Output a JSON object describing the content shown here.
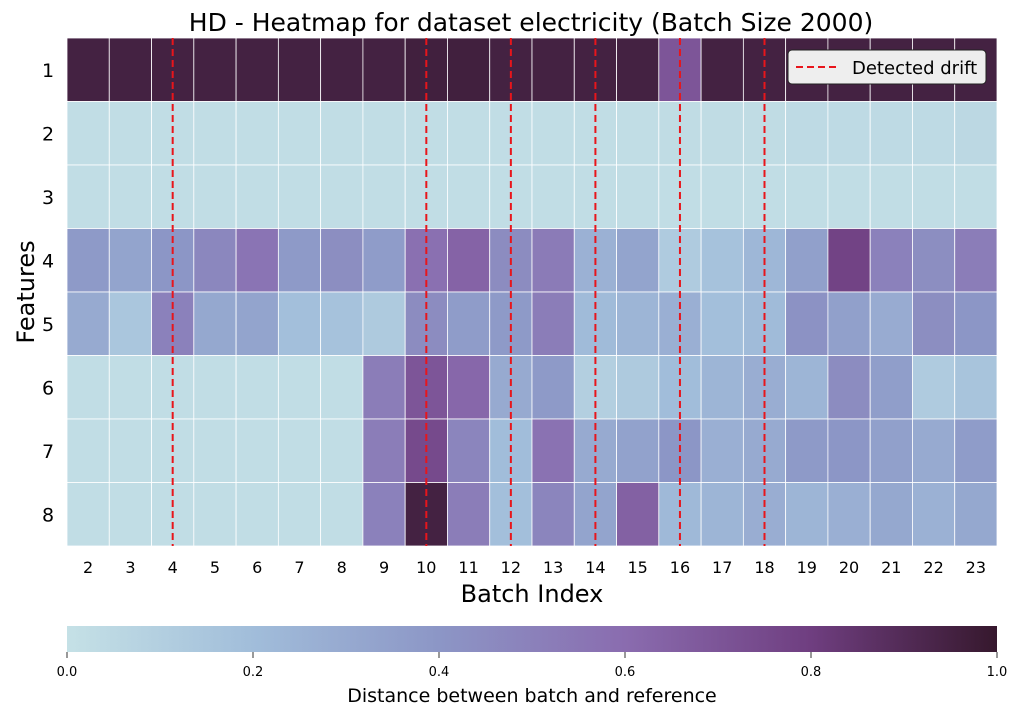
{
  "chart_data": {
    "type": "heatmap",
    "title": "HD - Heatmap for dataset electricity (Batch Size 2000)",
    "xlabel": "Batch Index",
    "ylabel": "Features",
    "x_categories": [
      "2",
      "3",
      "4",
      "5",
      "6",
      "7",
      "8",
      "9",
      "10",
      "11",
      "12",
      "13",
      "14",
      "15",
      "16",
      "17",
      "18",
      "19",
      "20",
      "21",
      "22",
      "23"
    ],
    "y_categories": [
      "1",
      "2",
      "3",
      "4",
      "5",
      "6",
      "7",
      "8"
    ],
    "values": [
      [
        0.95,
        0.95,
        0.95,
        0.95,
        0.95,
        0.95,
        0.95,
        0.95,
        0.96,
        0.96,
        0.95,
        0.95,
        0.95,
        0.95,
        0.7,
        0.95,
        0.95,
        0.95,
        0.95,
        0.95,
        0.95,
        0.95
      ],
      [
        0.02,
        0.02,
        0.02,
        0.02,
        0.02,
        0.02,
        0.02,
        0.02,
        0.02,
        0.02,
        0.02,
        0.02,
        0.02,
        0.02,
        0.03,
        0.03,
        0.03,
        0.04,
        0.04,
        0.04,
        0.04,
        0.05
      ],
      [
        0.02,
        0.02,
        0.02,
        0.02,
        0.02,
        0.02,
        0.02,
        0.02,
        0.02,
        0.02,
        0.02,
        0.02,
        0.02,
        0.02,
        0.02,
        0.02,
        0.02,
        0.02,
        0.02,
        0.02,
        0.02,
        0.02
      ],
      [
        0.38,
        0.33,
        0.4,
        0.47,
        0.56,
        0.38,
        0.44,
        0.37,
        0.58,
        0.64,
        0.45,
        0.53,
        0.26,
        0.33,
        0.12,
        0.17,
        0.23,
        0.35,
        0.78,
        0.5,
        0.44,
        0.52
      ],
      [
        0.3,
        0.15,
        0.5,
        0.31,
        0.33,
        0.19,
        0.17,
        0.13,
        0.45,
        0.37,
        0.38,
        0.52,
        0.21,
        0.24,
        0.27,
        0.19,
        0.21,
        0.42,
        0.35,
        0.29,
        0.44,
        0.4
      ],
      [
        0.02,
        0.02,
        0.02,
        0.02,
        0.02,
        0.02,
        0.02,
        0.52,
        0.7,
        0.62,
        0.3,
        0.38,
        0.1,
        0.13,
        0.2,
        0.24,
        0.28,
        0.24,
        0.45,
        0.36,
        0.12,
        0.16
      ],
      [
        0.02,
        0.02,
        0.02,
        0.02,
        0.02,
        0.02,
        0.02,
        0.52,
        0.75,
        0.48,
        0.2,
        0.57,
        0.3,
        0.34,
        0.4,
        0.27,
        0.3,
        0.38,
        0.4,
        0.35,
        0.3,
        0.37
      ],
      [
        0.02,
        0.02,
        0.02,
        0.02,
        0.02,
        0.02,
        0.02,
        0.5,
        0.95,
        0.52,
        0.19,
        0.48,
        0.33,
        0.65,
        0.22,
        0.24,
        0.28,
        0.24,
        0.27,
        0.31,
        0.26,
        0.31
      ]
    ],
    "drift_lines_x": [
      2.5,
      8.5,
      10.5,
      12.5,
      14.5,
      16.5
    ],
    "drift_line_color": "#e8151b",
    "legend": {
      "label": "Detected drift",
      "position": "top-right"
    },
    "colorbar": {
      "label": "Distance between batch and reference",
      "range": [
        0,
        1
      ],
      "ticks": [
        "0.0",
        "0.2",
        "0.4",
        "0.6",
        "0.8",
        "1.0"
      ],
      "orientation": "horizontal",
      "colormap_stops": [
        "#c5e1e6",
        "#a1bdda",
        "#8c96c6",
        "#8a6caf",
        "#6f3e80",
        "#36182d"
      ]
    }
  }
}
